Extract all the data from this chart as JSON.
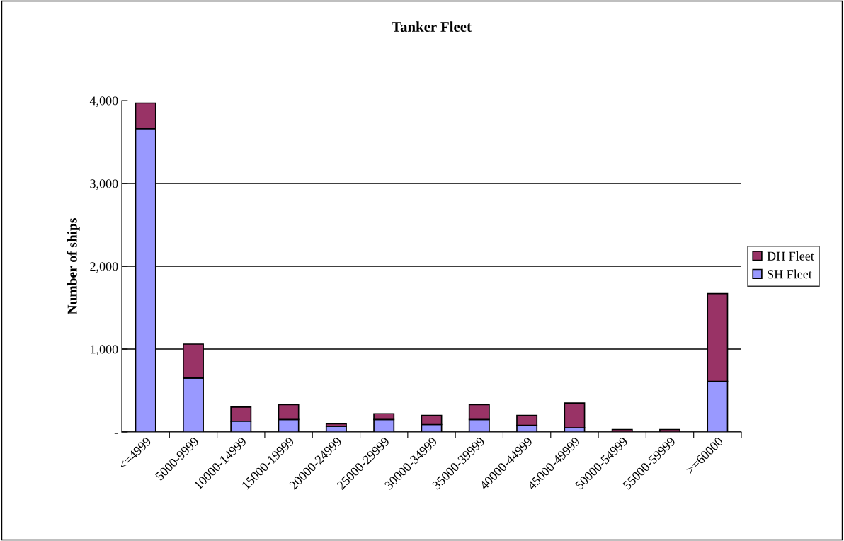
{
  "chart_data": {
    "type": "bar",
    "title": "Tanker Fleet",
    "ylabel": "Number of ships",
    "categories": [
      "<=4999",
      "5000-9999",
      "10000-14999",
      "15000-19999",
      "20000-24999",
      "25000-29999",
      "30000-34999",
      "35000-39999",
      "40000-44999",
      "45000-49999",
      "50000-54999",
      "55000-59999",
      ">=60000"
    ],
    "series": [
      {
        "name": "SH Fleet",
        "color": "#9999ff",
        "values": [
          3660,
          650,
          130,
          150,
          70,
          150,
          90,
          150,
          80,
          50,
          null,
          null,
          610
        ]
      },
      {
        "name": "DH Fleet",
        "color": "#993366",
        "values": [
          310,
          410,
          170,
          180,
          30,
          70,
          110,
          180,
          120,
          300,
          30,
          30,
          1060
        ]
      }
    ],
    "stacked": true,
    "ylim": [
      0,
      4000
    ],
    "yticks": [
      {
        "value": 0,
        "label": "-"
      },
      {
        "value": 1000,
        "label": "1,000"
      },
      {
        "value": 2000,
        "label": "2,000"
      },
      {
        "value": 3000,
        "label": "3,000"
      },
      {
        "value": 4000,
        "label": "4,000"
      }
    ],
    "grid": "y",
    "legend": "right"
  }
}
